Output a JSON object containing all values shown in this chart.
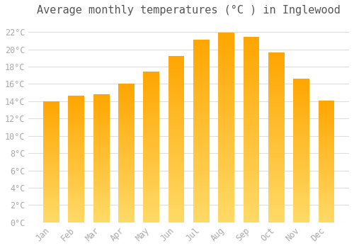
{
  "title": "Average monthly temperatures (°C ) in Inglewood",
  "months": [
    "Jan",
    "Feb",
    "Mar",
    "Apr",
    "May",
    "Jun",
    "Jul",
    "Aug",
    "Sep",
    "Oct",
    "Nov",
    "Dec"
  ],
  "values": [
    14.0,
    14.6,
    14.8,
    16.0,
    17.4,
    19.2,
    21.1,
    21.9,
    21.4,
    19.6,
    16.6,
    14.1
  ],
  "bar_color_bottom": "#FFD966",
  "bar_color_top": "#FFA500",
  "ylim": [
    0,
    23
  ],
  "yticks": [
    0,
    2,
    4,
    6,
    8,
    10,
    12,
    14,
    16,
    18,
    20,
    22
  ],
  "ytick_labels": [
    "0°C",
    "2°C",
    "4°C",
    "6°C",
    "8°C",
    "10°C",
    "12°C",
    "14°C",
    "16°C",
    "18°C",
    "20°C",
    "22°C"
  ],
  "grid_color": "#DDDDDD",
  "background_color": "#FFFFFF",
  "title_fontsize": 11,
  "tick_fontsize": 8.5,
  "tick_color": "#AAAAAA",
  "title_color": "#555555",
  "bar_width": 0.65,
  "n_segments": 50
}
